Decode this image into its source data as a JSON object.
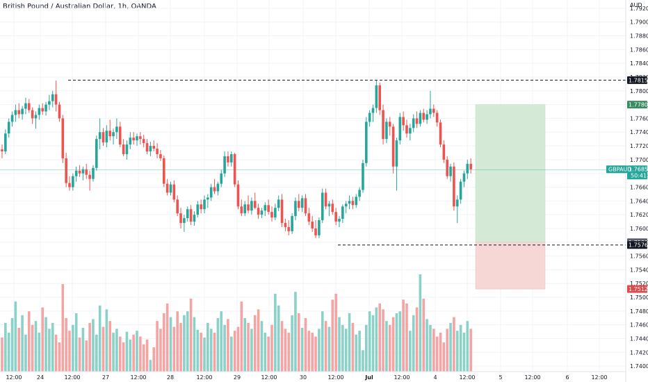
{
  "title": "British Pound / Australian Dollar, 1h, OANDA",
  "chart_data": {
    "type": "candlestick",
    "currency_label": "AUD",
    "y_ticks": [
      "1.74000",
      "1.74200",
      "1.74400",
      "1.74600",
      "1.74800",
      "1.75000",
      "1.75200",
      "1.75400",
      "1.75600",
      "1.75800",
      "1.76000",
      "1.76200",
      "1.76400",
      "1.76600",
      "1.76800",
      "1.77000",
      "1.77200",
      "1.77400",
      "1.77600",
      "1.77800",
      "1.78000",
      "1.78200",
      "1.78400",
      "1.78600",
      "1.78800",
      "1.79000",
      "1.79200"
    ],
    "x_ticks": [
      "12:00",
      "24",
      "12:00",
      "27",
      "12:00",
      "28",
      "12:00",
      "29",
      "12:00",
      "30",
      "12:00",
      "Jul",
      "12:00",
      "4",
      "12:00",
      "5",
      "12:00",
      "6",
      "12:00"
    ],
    "ylim": [
      1.7387,
      1.7932
    ],
    "candles_ohlc": [
      [
        1.7715,
        1.7722,
        1.7702,
        1.7712
      ],
      [
        1.7712,
        1.7744,
        1.7708,
        1.7738
      ],
      [
        1.7738,
        1.776,
        1.7732,
        1.7755
      ],
      [
        1.7755,
        1.777,
        1.7748,
        1.7765
      ],
      [
        1.7765,
        1.778,
        1.7755,
        1.7772
      ],
      [
        1.7772,
        1.7782,
        1.776,
        1.7766
      ],
      [
        1.7766,
        1.7778,
        1.7758,
        1.7774
      ],
      [
        1.7774,
        1.779,
        1.7766,
        1.7782
      ],
      [
        1.7782,
        1.7788,
        1.7768,
        1.7772
      ],
      [
        1.7772,
        1.7776,
        1.7752,
        1.776
      ],
      [
        1.776,
        1.777,
        1.7745,
        1.7765
      ],
      [
        1.7765,
        1.778,
        1.7758,
        1.7775
      ],
      [
        1.7775,
        1.7782,
        1.7765,
        1.777
      ],
      [
        1.777,
        1.7784,
        1.7764,
        1.778
      ],
      [
        1.778,
        1.7794,
        1.7772,
        1.7785
      ],
      [
        1.7785,
        1.78,
        1.7776,
        1.7795
      ],
      [
        1.7795,
        1.7815,
        1.777,
        1.778
      ],
      [
        1.778,
        1.7784,
        1.7755,
        1.776
      ],
      [
        1.776,
        1.7765,
        1.7695,
        1.7702
      ],
      [
        1.7702,
        1.771,
        1.766,
        1.7666
      ],
      [
        1.7666,
        1.7676,
        1.7655,
        1.766
      ],
      [
        1.766,
        1.768,
        1.7655,
        1.7676
      ],
      [
        1.7676,
        1.769,
        1.7668,
        1.7684
      ],
      [
        1.7684,
        1.7692,
        1.7675,
        1.768
      ],
      [
        1.768,
        1.769,
        1.767,
        1.7686
      ],
      [
        1.7686,
        1.7694,
        1.7672,
        1.7678
      ],
      [
        1.7678,
        1.7684,
        1.7655,
        1.7672
      ],
      [
        1.7672,
        1.7692,
        1.7668,
        1.7688
      ],
      [
        1.7688,
        1.7735,
        1.7684,
        1.773
      ],
      [
        1.773,
        1.776,
        1.7715,
        1.774
      ],
      [
        1.774,
        1.7746,
        1.772,
        1.7725
      ],
      [
        1.7725,
        1.775,
        1.7718,
        1.7742
      ],
      [
        1.7742,
        1.7758,
        1.7728,
        1.7734
      ],
      [
        1.7734,
        1.7745,
        1.7722,
        1.774
      ],
      [
        1.774,
        1.776,
        1.773,
        1.7748
      ],
      [
        1.7748,
        1.7755,
        1.7718,
        1.7722
      ],
      [
        1.7722,
        1.773,
        1.7705,
        1.7708
      ],
      [
        1.7708,
        1.7728,
        1.77,
        1.7722
      ],
      [
        1.7722,
        1.774,
        1.7715,
        1.7732
      ],
      [
        1.7732,
        1.774,
        1.7722,
        1.7728
      ],
      [
        1.7728,
        1.7738,
        1.772,
        1.7734
      ],
      [
        1.7734,
        1.774,
        1.7722,
        1.773
      ],
      [
        1.773,
        1.7736,
        1.7718,
        1.7724
      ],
      [
        1.7724,
        1.773,
        1.7708,
        1.7712
      ],
      [
        1.7712,
        1.7726,
        1.7705,
        1.772
      ],
      [
        1.772,
        1.7728,
        1.7712,
        1.7716
      ],
      [
        1.7716,
        1.7724,
        1.7702,
        1.7708
      ],
      [
        1.7708,
        1.7714,
        1.7698,
        1.7702
      ],
      [
        1.7702,
        1.7706,
        1.766,
        1.7665
      ],
      [
        1.7665,
        1.7672,
        1.7648,
        1.7652
      ],
      [
        1.7652,
        1.7668,
        1.7648,
        1.7664
      ],
      [
        1.7664,
        1.767,
        1.7638,
        1.7642
      ],
      [
        1.7642,
        1.7648,
        1.7618,
        1.7622
      ],
      [
        1.7622,
        1.763,
        1.76,
        1.7608
      ],
      [
        1.7608,
        1.762,
        1.7595,
        1.7615
      ],
      [
        1.7615,
        1.7632,
        1.761,
        1.7628
      ],
      [
        1.7628,
        1.7634,
        1.7605,
        1.761
      ],
      [
        1.761,
        1.7625,
        1.7604,
        1.762
      ],
      [
        1.762,
        1.764,
        1.7616,
        1.7635
      ],
      [
        1.7635,
        1.7642,
        1.7622,
        1.7628
      ],
      [
        1.7628,
        1.7648,
        1.7622,
        1.7642
      ],
      [
        1.7642,
        1.765,
        1.763,
        1.7645
      ],
      [
        1.7645,
        1.7665,
        1.764,
        1.766
      ],
      [
        1.766,
        1.7672,
        1.765,
        1.7654
      ],
      [
        1.7654,
        1.7668,
        1.7648,
        1.7665
      ],
      [
        1.7665,
        1.7685,
        1.766,
        1.768
      ],
      [
        1.768,
        1.7712,
        1.7675,
        1.7705
      ],
      [
        1.7705,
        1.7712,
        1.769,
        1.7696
      ],
      [
        1.7696,
        1.7712,
        1.769,
        1.7708
      ],
      [
        1.7708,
        1.771,
        1.766,
        1.7664
      ],
      [
        1.7664,
        1.767,
        1.7628,
        1.7632
      ],
      [
        1.7632,
        1.7642,
        1.7618,
        1.7622
      ],
      [
        1.7622,
        1.764,
        1.7618,
        1.7635
      ],
      [
        1.7635,
        1.7648,
        1.7622,
        1.7626
      ],
      [
        1.7626,
        1.7645,
        1.762,
        1.764
      ],
      [
        1.764,
        1.7652,
        1.7628,
        1.763
      ],
      [
        1.763,
        1.7636,
        1.7614,
        1.762
      ],
      [
        1.762,
        1.763,
        1.7615,
        1.7626
      ],
      [
        1.7626,
        1.7638,
        1.7618,
        1.7634
      ],
      [
        1.7634,
        1.7642,
        1.762,
        1.7624
      ],
      [
        1.7624,
        1.7632,
        1.761,
        1.7616
      ],
      [
        1.7616,
        1.7636,
        1.7612,
        1.763
      ],
      [
        1.763,
        1.7648,
        1.7625,
        1.7642
      ],
      [
        1.7642,
        1.765,
        1.7602,
        1.7608
      ],
      [
        1.7608,
        1.7614,
        1.7596,
        1.7602
      ],
      [
        1.7602,
        1.7612,
        1.759,
        1.7596
      ],
      [
        1.7596,
        1.7622,
        1.7592,
        1.7618
      ],
      [
        1.7618,
        1.7645,
        1.7612,
        1.764
      ],
      [
        1.764,
        1.765,
        1.7625,
        1.763
      ],
      [
        1.763,
        1.7648,
        1.7624,
        1.7644
      ],
      [
        1.7644,
        1.765,
        1.7618,
        1.7622
      ],
      [
        1.7622,
        1.763,
        1.7605,
        1.761
      ],
      [
        1.761,
        1.7618,
        1.7595,
        1.76
      ],
      [
        1.76,
        1.7612,
        1.7586,
        1.759
      ],
      [
        1.759,
        1.7616,
        1.7586,
        1.7612
      ],
      [
        1.7612,
        1.7658,
        1.7608,
        1.7652
      ],
      [
        1.7652,
        1.7658,
        1.7628,
        1.7632
      ],
      [
        1.7632,
        1.764,
        1.7618,
        1.7636
      ],
      [
        1.7636,
        1.7642,
        1.762,
        1.7624
      ],
      [
        1.7624,
        1.763,
        1.7605,
        1.761
      ],
      [
        1.761,
        1.7618,
        1.7602,
        1.7614
      ],
      [
        1.7614,
        1.7635,
        1.7608,
        1.7632
      ],
      [
        1.7632,
        1.764,
        1.7622,
        1.7636
      ],
      [
        1.7636,
        1.7648,
        1.7628,
        1.764
      ],
      [
        1.764,
        1.7646,
        1.7628,
        1.7634
      ],
      [
        1.7634,
        1.765,
        1.763,
        1.7646
      ],
      [
        1.7646,
        1.766,
        1.764,
        1.7656
      ],
      [
        1.7656,
        1.77,
        1.7652,
        1.7695
      ],
      [
        1.7695,
        1.7762,
        1.769,
        1.7755
      ],
      [
        1.7755,
        1.7772,
        1.7748,
        1.7768
      ],
      [
        1.7768,
        1.778,
        1.7755,
        1.7775
      ],
      [
        1.7775,
        1.7815,
        1.7768,
        1.7808
      ],
      [
        1.7808,
        1.7812,
        1.7765,
        1.7772
      ],
      [
        1.7772,
        1.778,
        1.7722,
        1.773
      ],
      [
        1.773,
        1.776,
        1.7724,
        1.7755
      ],
      [
        1.7755,
        1.7762,
        1.7735,
        1.7748
      ],
      [
        1.7748,
        1.7752,
        1.768,
        1.769
      ],
      [
        1.769,
        1.7732,
        1.7655,
        1.7728
      ],
      [
        1.7728,
        1.7768,
        1.7722,
        1.7762
      ],
      [
        1.7762,
        1.777,
        1.7742,
        1.775
      ],
      [
        1.775,
        1.7758,
        1.7732,
        1.7738
      ],
      [
        1.7738,
        1.7752,
        1.7728,
        1.7746
      ],
      [
        1.7746,
        1.7766,
        1.774,
        1.776
      ],
      [
        1.776,
        1.777,
        1.7746,
        1.7752
      ],
      [
        1.7752,
        1.7772,
        1.7748,
        1.7768
      ],
      [
        1.7768,
        1.7774,
        1.7754,
        1.7758
      ],
      [
        1.7758,
        1.7772,
        1.7752,
        1.7766
      ],
      [
        1.7766,
        1.78,
        1.776,
        1.7774
      ],
      [
        1.7774,
        1.778,
        1.7762,
        1.7768
      ],
      [
        1.7768,
        1.7772,
        1.7748,
        1.7754
      ],
      [
        1.7754,
        1.7758,
        1.7718,
        1.7722
      ],
      [
        1.7722,
        1.7728,
        1.7695,
        1.77
      ],
      [
        1.77,
        1.7705,
        1.7672,
        1.7676
      ],
      [
        1.7676,
        1.7694,
        1.7668,
        1.769
      ],
      [
        1.769,
        1.7696,
        1.7626,
        1.7632
      ],
      [
        1.7632,
        1.7648,
        1.7608,
        1.7642
      ],
      [
        1.7642,
        1.7672,
        1.7636,
        1.7668
      ],
      [
        1.7668,
        1.7684,
        1.766,
        1.768
      ],
      [
        1.768,
        1.77,
        1.7672,
        1.7694
      ],
      [
        1.7694,
        1.7702,
        1.768,
        1.7686
      ]
    ],
    "volumes": [
      0.35,
      0.5,
      0.4,
      0.55,
      0.72,
      0.45,
      0.58,
      0.38,
      0.62,
      0.48,
      0.52,
      0.4,
      0.66,
      0.56,
      0.44,
      0.5,
      0.38,
      0.3,
      0.9,
      0.55,
      0.42,
      0.48,
      0.6,
      0.35,
      0.45,
      0.32,
      0.5,
      0.54,
      0.38,
      0.68,
      0.46,
      0.64,
      0.52,
      0.4,
      0.44,
      0.36,
      0.3,
      0.41,
      0.33,
      0.38,
      0.42,
      0.36,
      0.28,
      0.33,
      0.12,
      0.25,
      0.52,
      0.44,
      0.6,
      0.7,
      0.56,
      0.46,
      0.62,
      0.5,
      0.58,
      0.62,
      0.75,
      0.56,
      0.43,
      0.4,
      0.35,
      0.5,
      0.44,
      0.4,
      0.55,
      0.62,
      0.48,
      0.54,
      0.36,
      0.42,
      0.46,
      0.72,
      0.55,
      0.5,
      0.44,
      0.58,
      0.64,
      0.52,
      0.4,
      0.36,
      0.48,
      0.8,
      0.68,
      0.52,
      0.44,
      0.4,
      0.58,
      0.82,
      0.6,
      0.45,
      0.55,
      0.42,
      0.4,
      0.36,
      0.44,
      0.62,
      0.52,
      0.46,
      0.74,
      0.8,
      0.56,
      0.48,
      0.44,
      0.6,
      0.5,
      0.38,
      0.42,
      0.22,
      0.48,
      0.62,
      0.58,
      0.66,
      0.7,
      0.64,
      0.52,
      0.48,
      0.56,
      0.6,
      0.62,
      0.74,
      0.7,
      0.42,
      0.58,
      0.66,
      1.0,
      0.75,
      0.54,
      0.48,
      0.44,
      0.36,
      0.4,
      0.3,
      0.44,
      0.5,
      0.56,
      0.42,
      0.48,
      0.4,
      0.52,
      0.44
    ],
    "current_price": "1.76855",
    "countdown": "50:41",
    "symbol_tag": "GBPAUD",
    "price_tags": [
      {
        "label": "1.78156",
        "color": "#131722",
        "price": 1.78156
      },
      {
        "label": "1.77800",
        "color": "#3a8a62",
        "price": 1.778
      },
      {
        "label": "1.75800",
        "color": "#5c5f6b",
        "price": 1.758
      },
      {
        "label": "1.75760",
        "color": "#131722",
        "price": 1.7576
      },
      {
        "label": "1.75120",
        "color": "#e04a4a",
        "price": 1.7512
      }
    ],
    "resistance_level": 1.78156,
    "support_level": 1.7576,
    "position": {
      "entry": 1.758,
      "target": 1.778,
      "stop": 1.7512
    },
    "colors": {
      "up": "#26a69a",
      "down": "#ef5350",
      "vol_up": "#8ad1c8",
      "vol_down": "#f5a3a3",
      "profit_zone": "#d4ead7",
      "loss_zone": "#f7d6d6",
      "grid": "#f0f3fa",
      "current": "#26a69a"
    }
  }
}
